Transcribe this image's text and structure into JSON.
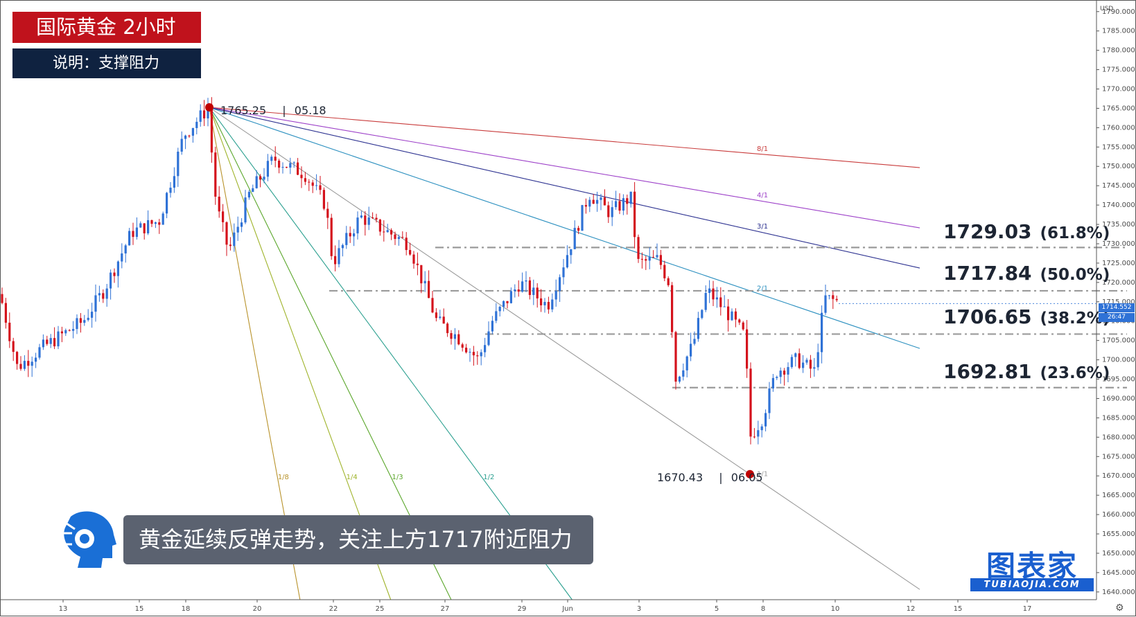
{
  "header": {
    "title": "国际黄金  2小时",
    "subtitle": "说明：支撑阻力"
  },
  "caption": "黄金延续反弹走势，关注上方1717附近阻力",
  "logo": {
    "main": "图表家",
    "sub": "TUBIAOJIA.COM",
    "color": "#1a5fcf"
  },
  "colors": {
    "up": "#2f72d6",
    "down": "#d4121c",
    "title_bg": "#c0121c",
    "subtitle_bg": "#0f2240",
    "marker": "#c00000",
    "price_tag": "#2f72d6",
    "fib_line": "#9a9a9a"
  },
  "chart_data": {
    "type": "candlestick",
    "currency": "USD",
    "y_range": [
      1638,
      1793
    ],
    "y_ticks": [
      1640,
      1645,
      1650,
      1655,
      1660,
      1665,
      1670,
      1675,
      1680,
      1685,
      1690,
      1695,
      1700,
      1705,
      1710,
      1715,
      1720,
      1725,
      1730,
      1735,
      1740,
      1745,
      1750,
      1755,
      1760,
      1765,
      1770,
      1775,
      1780,
      1785,
      1790
    ],
    "x_ticks": [
      "13",
      "15",
      "18",
      "20",
      "22",
      "25",
      "27",
      "29",
      "Jun",
      "3",
      "5",
      "8",
      "10",
      "12",
      "15",
      "17"
    ],
    "current_price": "1714.552",
    "countdown": "26:47",
    "pivot_high": {
      "price": "1765.25",
      "date": "05.18",
      "value": 1765.25
    },
    "pivot_low": {
      "price": "1670.43",
      "date": "06.05",
      "value": 1670.43
    },
    "fib_levels": [
      {
        "price": "1729.03",
        "pct": "(61.8%)",
        "value": 1729.03
      },
      {
        "price": "1717.84",
        "pct": "(50.0%)",
        "value": 1717.84
      },
      {
        "price": "1706.65",
        "pct": "(38.2%)",
        "value": 1706.65
      },
      {
        "price": "1692.81",
        "pct": "(23.6%)",
        "value": 1692.81
      }
    ],
    "gann_fan": [
      {
        "label": "8/1",
        "color": "#c83a3a"
      },
      {
        "label": "4/1",
        "color": "#9c3fc8"
      },
      {
        "label": "3/1",
        "color": "#2a2f8f"
      },
      {
        "label": "2/1",
        "color": "#2a8fbf"
      },
      {
        "label": "1/1",
        "color": "#9a9a9a"
      },
      {
        "label": "1/2",
        "color": "#2a9f8f"
      },
      {
        "label": "1/3",
        "color": "#5aa62a"
      },
      {
        "label": "1/4",
        "color": "#9fb32a"
      },
      {
        "label": "1/8",
        "color": "#b8922a"
      }
    ]
  }
}
